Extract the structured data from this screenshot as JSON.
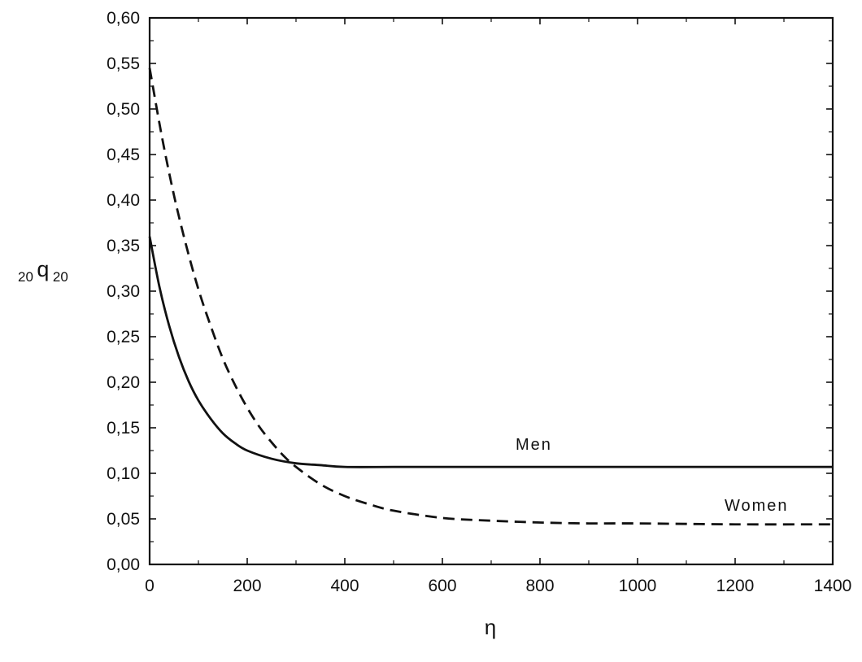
{
  "chart_data": {
    "type": "line",
    "title": "",
    "xlabel": "η",
    "ylabel": {
      "prefix": "20",
      "main": "q",
      "suffix": "20"
    },
    "xlim": [
      0,
      1400
    ],
    "ylim": [
      0,
      0.6
    ],
    "x_ticks": [
      "0",
      "200",
      "400",
      "600",
      "800",
      "1000",
      "1200",
      "1400"
    ],
    "y_ticks": [
      "0,00",
      "0,05",
      "0,10",
      "0,15",
      "0,20",
      "0,25",
      "0,30",
      "0,35",
      "0,40",
      "0,45",
      "0,50",
      "0,55",
      "0,60"
    ],
    "grid": false,
    "series": [
      {
        "name": "Men",
        "style": "solid",
        "x": [
          0,
          20,
          40,
          60,
          80,
          100,
          125,
          150,
          175,
          200,
          250,
          300,
          350,
          400,
          500,
          600,
          800,
          1000,
          1200,
          1400
        ],
        "y": [
          0.36,
          0.305,
          0.262,
          0.228,
          0.201,
          0.18,
          0.16,
          0.144,
          0.133,
          0.125,
          0.116,
          0.111,
          0.109,
          0.107,
          0.107,
          0.107,
          0.107,
          0.107,
          0.107,
          0.107
        ]
      },
      {
        "name": "Women",
        "style": "dashed",
        "x": [
          0,
          25,
          50,
          75,
          100,
          125,
          150,
          175,
          200,
          225,
          250,
          275,
          300,
          350,
          400,
          450,
          500,
          600,
          700,
          800,
          900,
          1000,
          1200,
          1400
        ],
        "y": [
          0.545,
          0.47,
          0.405,
          0.35,
          0.302,
          0.262,
          0.226,
          0.197,
          0.172,
          0.151,
          0.134,
          0.119,
          0.107,
          0.088,
          0.075,
          0.066,
          0.059,
          0.051,
          0.048,
          0.046,
          0.045,
          0.045,
          0.044,
          0.044
        ]
      }
    ]
  },
  "colors": {
    "line": "#111111",
    "background": "#ffffff"
  }
}
